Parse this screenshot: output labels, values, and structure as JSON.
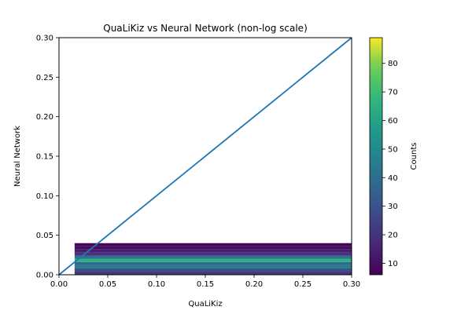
{
  "chart_data": {
    "type": "heatmap",
    "title": "QuaLiKiz vs Neural Network (non-log scale)",
    "xlabel": "QuaLiKiz",
    "ylabel": "Neural Network",
    "xlim": [
      0.0,
      0.3
    ],
    "ylim": [
      0.0,
      0.3
    ],
    "x_ticks": [
      "0.00",
      "0.05",
      "0.10",
      "0.15",
      "0.20",
      "0.25",
      "0.30"
    ],
    "y_ticks": [
      "0.00",
      "0.05",
      "0.10",
      "0.15",
      "0.20",
      "0.25",
      "0.30"
    ],
    "grid": false,
    "heatmap": {
      "x_range": [
        0.016,
        0.3
      ],
      "rows": [
        {
          "y0": 0.0,
          "y1": 0.004,
          "count": 22
        },
        {
          "y0": 0.004,
          "y1": 0.008,
          "count": 28
        },
        {
          "y0": 0.008,
          "y1": 0.012,
          "count": 45
        },
        {
          "y0": 0.012,
          "y1": 0.016,
          "count": 38
        },
        {
          "y0": 0.016,
          "y1": 0.02,
          "count": 65
        },
        {
          "y0": 0.02,
          "y1": 0.024,
          "count": 42
        },
        {
          "y0": 0.024,
          "y1": 0.028,
          "count": 20
        },
        {
          "y0": 0.028,
          "y1": 0.032,
          "count": 14
        },
        {
          "y0": 0.032,
          "y1": 0.036,
          "count": 9
        },
        {
          "y0": 0.036,
          "y1": 0.04,
          "count": 7
        }
      ]
    },
    "reference_line": {
      "x": [
        0.0,
        0.3
      ],
      "y": [
        0.0,
        0.3
      ],
      "color": "#1f77b4"
    },
    "colorbar": {
      "label": "Counts",
      "min": 6,
      "max": 89,
      "ticks": [
        "10",
        "20",
        "30",
        "40",
        "50",
        "60",
        "70",
        "80"
      ],
      "tick_values": [
        10,
        20,
        30,
        40,
        50,
        60,
        70,
        80
      ],
      "colormap": "viridis"
    }
  }
}
